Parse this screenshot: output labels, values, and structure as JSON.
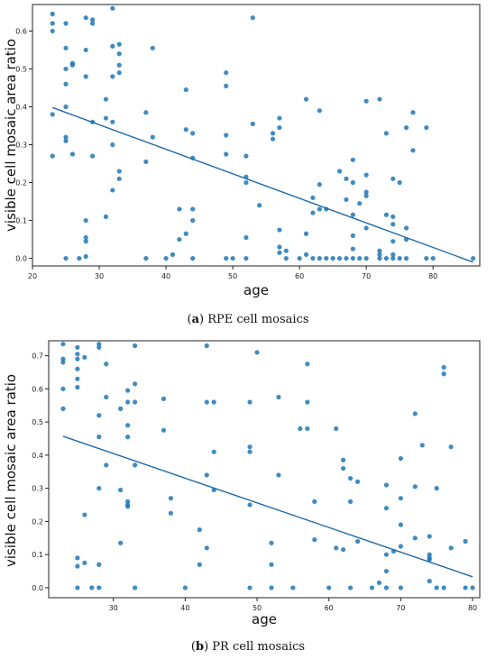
{
  "chart_data": [
    {
      "type": "scatter",
      "title": "",
      "caption_letter": "a",
      "caption_text": "RPE cell mosaics",
      "xlabel": "age",
      "ylabel": "visible cell mosaic area ratio",
      "xlim": [
        20,
        87
      ],
      "ylim": [
        -0.02,
        0.67
      ],
      "xticks": [
        20,
        30,
        40,
        50,
        60,
        70,
        80
      ],
      "yticks": [
        0.0,
        0.1,
        0.2,
        0.3,
        0.4,
        0.5,
        0.6
      ],
      "ytick_labels": [
        "0.0",
        "0.1",
        "0.2",
        "0.3",
        "0.4",
        "0.5",
        "0.6"
      ],
      "grid": false,
      "point_color": "#1f77b4",
      "line_color": "#1f6aa5",
      "trendline": {
        "x": [
          23,
          86
        ],
        "y": [
          0.398,
          -0.01
        ]
      },
      "points": [
        [
          23,
          0.645
        ],
        [
          23,
          0.62
        ],
        [
          23,
          0.6
        ],
        [
          23,
          0.38
        ],
        [
          23,
          0.27
        ],
        [
          25,
          0.62
        ],
        [
          25,
          0.555
        ],
        [
          25,
          0.5
        ],
        [
          25,
          0.46
        ],
        [
          25,
          0.4
        ],
        [
          25,
          0.32
        ],
        [
          25,
          0.31
        ],
        [
          25,
          0.0
        ],
        [
          26,
          0.515
        ],
        [
          26,
          0.51
        ],
        [
          26,
          0.275
        ],
        [
          27,
          0.0
        ],
        [
          28,
          0.635
        ],
        [
          28,
          0.55
        ],
        [
          28,
          0.48
        ],
        [
          28,
          0.1
        ],
        [
          28,
          0.055
        ],
        [
          28,
          0.045
        ],
        [
          28,
          0.005
        ],
        [
          29,
          0.63
        ],
        [
          29,
          0.62
        ],
        [
          29,
          0.36
        ],
        [
          29,
          0.27
        ],
        [
          31,
          0.11
        ],
        [
          31,
          0.42
        ],
        [
          31,
          0.37
        ],
        [
          32,
          0.66
        ],
        [
          32,
          0.56
        ],
        [
          32,
          0.48
        ],
        [
          32,
          0.36
        ],
        [
          32,
          0.3
        ],
        [
          32,
          0.18
        ],
        [
          33,
          0.565
        ],
        [
          33,
          0.54
        ],
        [
          33,
          0.51
        ],
        [
          33,
          0.49
        ],
        [
          33,
          0.23
        ],
        [
          33,
          0.21
        ],
        [
          37,
          0.385
        ],
        [
          37,
          0.255
        ],
        [
          37,
          0.0
        ],
        [
          38,
          0.555
        ],
        [
          38,
          0.32
        ],
        [
          40,
          0.0
        ],
        [
          41,
          0.01
        ],
        [
          42,
          0.13
        ],
        [
          42,
          0.05
        ],
        [
          43,
          0.445
        ],
        [
          43,
          0.34
        ],
        [
          43,
          0.065
        ],
        [
          44,
          0.33
        ],
        [
          44,
          0.265
        ],
        [
          44,
          0.13
        ],
        [
          44,
          0.1
        ],
        [
          44,
          0.0
        ],
        [
          49,
          0.49
        ],
        [
          49,
          0.455
        ],
        [
          49,
          0.325
        ],
        [
          49,
          0.275
        ],
        [
          49,
          0.0
        ],
        [
          50,
          0.0
        ],
        [
          52,
          0.27
        ],
        [
          52,
          0.215
        ],
        [
          52,
          0.2
        ],
        [
          52,
          0.055
        ],
        [
          52,
          0.0
        ],
        [
          53,
          0.635
        ],
        [
          53,
          0.355
        ],
        [
          54,
          0.14
        ],
        [
          56,
          0.33
        ],
        [
          56,
          0.315
        ],
        [
          57,
          0.37
        ],
        [
          57,
          0.345
        ],
        [
          57,
          0.075
        ],
        [
          57,
          0.03
        ],
        [
          57,
          0.015
        ],
        [
          58,
          0.02
        ],
        [
          58,
          0.0
        ],
        [
          60,
          0.0
        ],
        [
          61,
          0.42
        ],
        [
          61,
          0.065
        ],
        [
          61,
          0.01
        ],
        [
          62,
          0.16
        ],
        [
          62,
          0.12
        ],
        [
          62,
          0.0
        ],
        [
          63,
          0.39
        ],
        [
          63,
          0.195
        ],
        [
          63,
          0.13
        ],
        [
          63,
          0.0
        ],
        [
          64,
          0.13
        ],
        [
          64,
          0.0
        ],
        [
          65,
          0.0
        ],
        [
          66,
          0.23
        ],
        [
          66,
          0.0
        ],
        [
          67,
          0.21
        ],
        [
          67,
          0.155
        ],
        [
          67,
          0.0
        ],
        [
          68,
          0.26
        ],
        [
          68,
          0.2
        ],
        [
          68,
          0.115
        ],
        [
          68,
          0.06
        ],
        [
          68,
          0.025
        ],
        [
          68,
          0.0
        ],
        [
          69,
          0.145
        ],
        [
          69,
          0.0
        ],
        [
          70,
          0.415
        ],
        [
          70,
          0.22
        ],
        [
          70,
          0.175
        ],
        [
          70,
          0.165
        ],
        [
          70,
          0.08
        ],
        [
          70,
          0.0
        ],
        [
          72,
          0.42
        ],
        [
          72,
          0.02
        ],
        [
          72,
          0.01
        ],
        [
          72,
          0.0
        ],
        [
          73,
          0.33
        ],
        [
          73,
          0.115
        ],
        [
          73,
          0.0
        ],
        [
          74,
          0.21
        ],
        [
          74,
          0.11
        ],
        [
          74,
          0.09
        ],
        [
          74,
          0.045
        ],
        [
          74,
          0.01
        ],
        [
          74,
          0.0
        ],
        [
          75,
          0.2
        ],
        [
          75,
          0.0
        ],
        [
          76,
          0.345
        ],
        [
          76,
          0.08
        ],
        [
          76,
          0.05
        ],
        [
          76,
          0.0
        ],
        [
          77,
          0.385
        ],
        [
          77,
          0.285
        ],
        [
          79,
          0.345
        ],
        [
          79,
          0.0
        ],
        [
          80,
          0.0
        ],
        [
          86,
          0.0
        ]
      ]
    },
    {
      "type": "scatter",
      "title": "",
      "caption_letter": "b",
      "caption_text": "PR cell mosaics",
      "xlabel": "age",
      "ylabel": "visible cell mosaic area ratio",
      "xlim": [
        21,
        81
      ],
      "ylim": [
        -0.03,
        0.745
      ],
      "xticks": [
        30,
        40,
        50,
        60,
        70,
        80
      ],
      "yticks": [
        0.0,
        0.1,
        0.2,
        0.3,
        0.4,
        0.5,
        0.6,
        0.7
      ],
      "ytick_labels": [
        "0.0",
        "0.1",
        "0.2",
        "0.3",
        "0.4",
        "0.5",
        "0.6",
        "0.7"
      ],
      "grid": false,
      "point_color": "#1f77b4",
      "line_color": "#1f6aa5",
      "trendline": {
        "x": [
          23,
          80
        ],
        "y": [
          0.457,
          0.033
        ]
      },
      "points": [
        [
          23,
          0.735
        ],
        [
          23,
          0.69
        ],
        [
          23,
          0.68
        ],
        [
          23,
          0.6
        ],
        [
          23,
          0.54
        ],
        [
          25,
          0.725
        ],
        [
          25,
          0.705
        ],
        [
          25,
          0.69
        ],
        [
          25,
          0.66
        ],
        [
          25,
          0.63
        ],
        [
          25,
          0.605
        ],
        [
          25,
          0.09
        ],
        [
          25,
          0.065
        ],
        [
          25,
          0.0
        ],
        [
          26,
          0.695
        ],
        [
          26,
          0.22
        ],
        [
          26,
          0.075
        ],
        [
          27,
          0.0
        ],
        [
          28,
          0.735
        ],
        [
          28,
          0.725
        ],
        [
          28,
          0.52
        ],
        [
          28,
          0.455
        ],
        [
          28,
          0.3
        ],
        [
          28,
          0.07
        ],
        [
          28,
          0.0
        ],
        [
          29,
          0.675
        ],
        [
          29,
          0.575
        ],
        [
          29,
          0.37
        ],
        [
          31,
          0.54
        ],
        [
          31,
          0.295
        ],
        [
          31,
          0.135
        ],
        [
          32,
          0.595
        ],
        [
          32,
          0.56
        ],
        [
          32,
          0.49
        ],
        [
          32,
          0.455
        ],
        [
          32,
          0.26
        ],
        [
          32,
          0.25
        ],
        [
          32,
          0.245
        ],
        [
          33,
          0.73
        ],
        [
          33,
          0.615
        ],
        [
          33,
          0.56
        ],
        [
          33,
          0.37
        ],
        [
          33,
          0.0
        ],
        [
          37,
          0.57
        ],
        [
          37,
          0.475
        ],
        [
          38,
          0.27
        ],
        [
          38,
          0.225
        ],
        [
          40,
          0.0
        ],
        [
          42,
          0.175
        ],
        [
          42,
          0.07
        ],
        [
          43,
          0.73
        ],
        [
          43,
          0.56
        ],
        [
          43,
          0.34
        ],
        [
          43,
          0.12
        ],
        [
          44,
          0.56
        ],
        [
          44,
          0.41
        ],
        [
          44,
          0.295
        ],
        [
          49,
          0.56
        ],
        [
          49,
          0.425
        ],
        [
          49,
          0.41
        ],
        [
          49,
          0.25
        ],
        [
          49,
          0.0
        ],
        [
          50,
          0.71
        ],
        [
          52,
          0.135
        ],
        [
          52,
          0.07
        ],
        [
          52,
          0.0
        ],
        [
          53,
          0.575
        ],
        [
          53,
          0.34
        ],
        [
          55,
          0.0
        ],
        [
          56,
          0.48
        ],
        [
          57,
          0.675
        ],
        [
          57,
          0.56
        ],
        [
          57,
          0.48
        ],
        [
          58,
          0.26
        ],
        [
          58,
          0.145
        ],
        [
          60,
          0.0
        ],
        [
          61,
          0.48
        ],
        [
          61,
          0.12
        ],
        [
          62,
          0.385
        ],
        [
          62,
          0.36
        ],
        [
          62,
          0.115
        ],
        [
          63,
          0.33
        ],
        [
          63,
          0.26
        ],
        [
          63,
          0.0
        ],
        [
          64,
          0.32
        ],
        [
          64,
          0.14
        ],
        [
          66,
          0.0
        ],
        [
          67,
          0.015
        ],
        [
          68,
          0.31
        ],
        [
          68,
          0.24
        ],
        [
          68,
          0.1
        ],
        [
          68,
          0.05
        ],
        [
          68,
          0.0
        ],
        [
          69,
          0.11
        ],
        [
          70,
          0.39
        ],
        [
          70,
          0.27
        ],
        [
          70,
          0.19
        ],
        [
          70,
          0.125
        ],
        [
          70,
          0.0
        ],
        [
          72,
          0.525
        ],
        [
          72,
          0.305
        ],
        [
          72,
          0.15
        ],
        [
          73,
          0.43
        ],
        [
          74,
          0.155
        ],
        [
          74,
          0.1
        ],
        [
          74,
          0.09
        ],
        [
          74,
          0.085
        ],
        [
          74,
          0.02
        ],
        [
          75,
          0.3
        ],
        [
          75,
          0.0
        ],
        [
          76,
          0.665
        ],
        [
          76,
          0.645
        ],
        [
          76,
          0.0
        ],
        [
          77,
          0.425
        ],
        [
          77,
          0.12
        ],
        [
          79,
          0.14
        ],
        [
          79,
          0.0
        ],
        [
          80,
          0.0
        ]
      ]
    }
  ]
}
